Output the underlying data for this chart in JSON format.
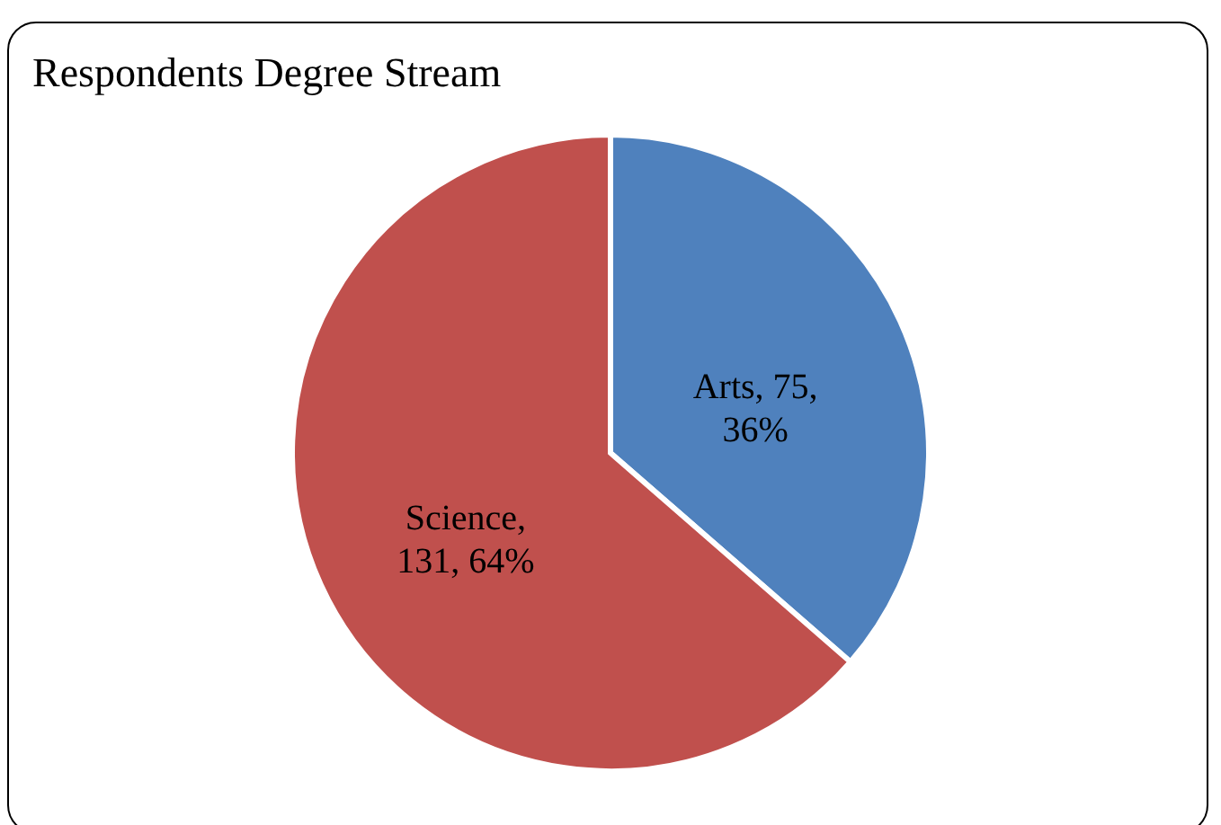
{
  "chart_data": {
    "type": "pie",
    "title": "Respondents  Degree Stream",
    "categories": [
      "Arts",
      "Science"
    ],
    "values": [
      75,
      131
    ],
    "colors": [
      "#4f81bd",
      "#c0504d"
    ],
    "value_labels": [
      ", 75, 36%",
      ", 131, 64%"
    ],
    "legend": false
  }
}
